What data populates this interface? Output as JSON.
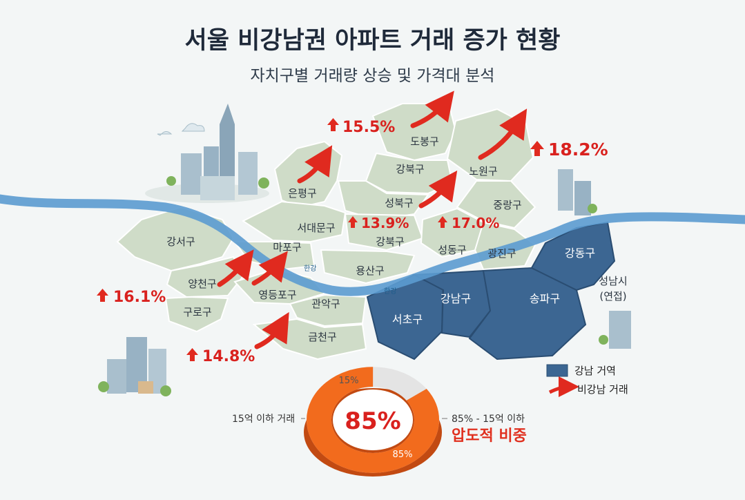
{
  "title": "서울 비강남권 아파트 거래 증가 현황",
  "subtitle": "자치구별 거래량 상승 및 가격대 분석",
  "river_labels": [
    "한강",
    "한강"
  ],
  "districts": {
    "dobong": "도봉구",
    "gangbuk": "강북구",
    "nowon": "노원구",
    "eunpyeong": "은평구",
    "seongbuk": "성북구",
    "jungnang": "중랑구",
    "seodaemun": "서대문구",
    "gangbuk2": "강북구",
    "gangseo": "강서구",
    "mapo": "마포구",
    "seongdong": "성동구",
    "gwangjin": "광진구",
    "yongsan": "용산구",
    "gangdong": "강동구",
    "yangcheon": "양천구",
    "yeongdeungpo": "영등포구",
    "gangnam": "강남구",
    "songpa": "송파구",
    "guro": "구로구",
    "gwanak": "관악구",
    "seocho": "서초구",
    "geumcheon": "금천구",
    "seongnam": "성남시",
    "seongnam_note": "(연접)"
  },
  "increases": {
    "north": "15.5%",
    "nowon": "18.2%",
    "seongbuk": "13.9%",
    "seongdong": "17.0%",
    "west": "16.1%",
    "southwest": "14.8%"
  },
  "legend": {
    "gangnam": "강남 거역",
    "non_gangnam": "비강남 거래"
  },
  "donut": {
    "center": "85%",
    "share_small": "15%",
    "share_large": "85%",
    "left_label": "15억 이하 거래",
    "right_label": "85% - 15억 이하",
    "emphasis": "압도적 비중",
    "fraction_under_15": 0.85
  },
  "colors": {
    "non_gangnam": "#cfdcc8",
    "gangnam": "#3c6692",
    "river": "#5b9bd0",
    "arrow": "#e02a1f",
    "donut_orange": "#f26b1d",
    "donut_grey": "#e4e4e4"
  }
}
